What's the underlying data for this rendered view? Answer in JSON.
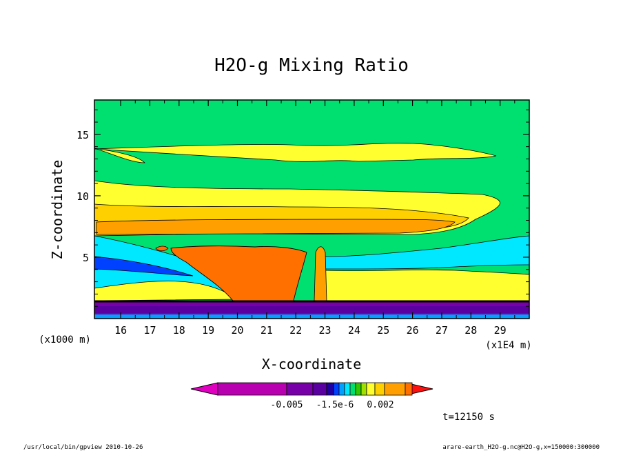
{
  "chart_data": {
    "type": "heatmap",
    "title": "H2O-g Mixing Ratio",
    "xlabel": "X-coordinate",
    "ylabel": "Z-coordinate",
    "x_unit": "(x1E4 m)",
    "y_unit": "(x1000 m)",
    "xlim": [
      15.1,
      30.0
    ],
    "ylim": [
      0,
      17.8
    ],
    "x_ticks": [
      16,
      17,
      18,
      19,
      20,
      21,
      22,
      23,
      24,
      25,
      26,
      27,
      28,
      29
    ],
    "y_ticks": [
      5,
      10,
      15
    ],
    "colorbar": {
      "labels": [
        "-0.005",
        "-1.5e-6",
        "0.002"
      ],
      "colors": [
        "#e000c0",
        "#b800b0",
        "#7800a8",
        "#5a00a0",
        "#2000a0",
        "#0040ff",
        "#00a0ff",
        "#00e8ff",
        "#00e070",
        "#30c800",
        "#a0e000",
        "#ffff30",
        "#ffd000",
        "#ffa000",
        "#ff7000",
        "#ff1010"
      ]
    },
    "time_label": "t=12150 s",
    "annotations": {
      "left": "/usr/local/bin/gpview  2010-10-26",
      "right": "arare-earth_H2O-g.nc@H2O-g,x=150000:300000"
    }
  }
}
